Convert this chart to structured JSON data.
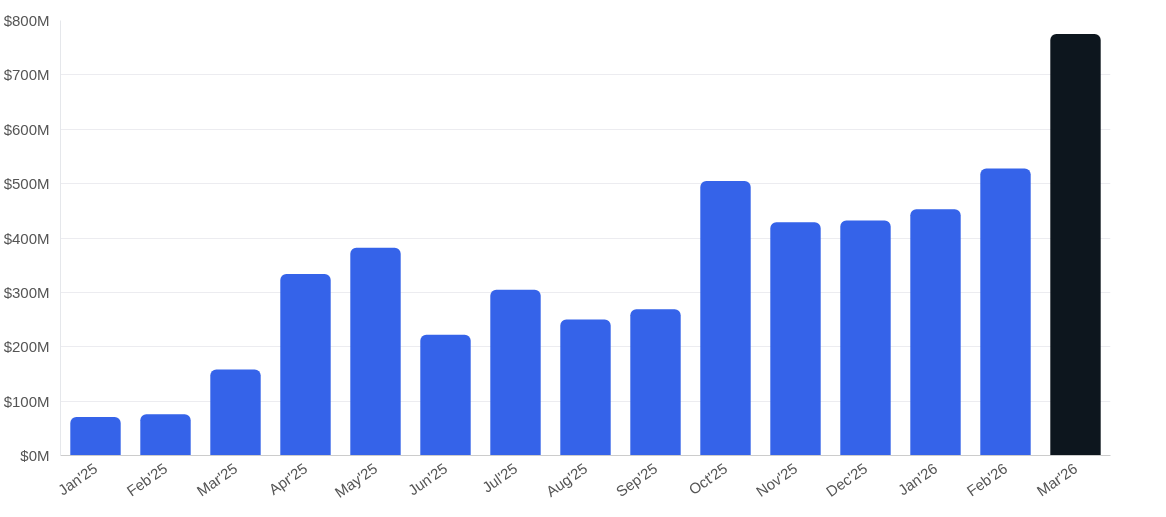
{
  "chart_data": {
    "type": "bar",
    "categories": [
      "Jan'25",
      "Feb'25",
      "Mar'25",
      "Apr'25",
      "May'25",
      "Jun'25",
      "Jul'25",
      "Aug'25",
      "Sep'25",
      "Oct'25",
      "Nov'25",
      "Dec'25",
      "Jan'26",
      "Feb'26",
      "Mar'26"
    ],
    "values": [
      71,
      76,
      158,
      334,
      382,
      222,
      305,
      250,
      269,
      505,
      429,
      432,
      453,
      528,
      775
    ],
    "colors": [
      "#3563e9",
      "#3563e9",
      "#3563e9",
      "#3563e9",
      "#3563e9",
      "#3563e9",
      "#3563e9",
      "#3563e9",
      "#3563e9",
      "#3563e9",
      "#3563e9",
      "#3563e9",
      "#3563e9",
      "#3563e9",
      "#0d161e"
    ],
    "ylim": [
      0,
      800
    ],
    "yticks": [
      {
        "value": 0,
        "label": "$0M"
      },
      {
        "value": 100,
        "label": "$100M"
      },
      {
        "value": 200,
        "label": "$200M"
      },
      {
        "value": 300,
        "label": "$300M"
      },
      {
        "value": 400,
        "label": "$400M"
      },
      {
        "value": 500,
        "label": "$500M"
      },
      {
        "value": 600,
        "label": "$600M"
      },
      {
        "value": 700,
        "label": "$700M"
      },
      {
        "value": 800,
        "label": "$800M"
      }
    ],
    "grid": "y"
  }
}
